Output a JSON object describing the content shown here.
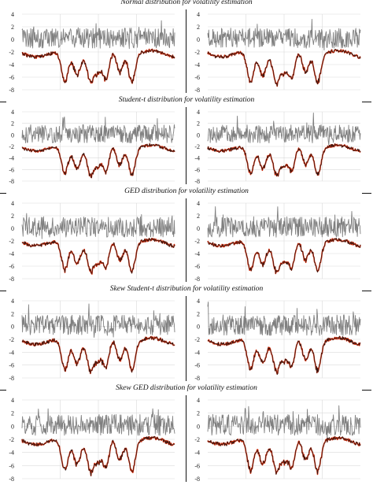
{
  "figure": {
    "rows": [
      {
        "title": "Normal distribution for volatility estimation",
        "panels": [
          {
            "seed": 11
          },
          {
            "seed": 12
          }
        ]
      },
      {
        "title": "Student-t distribution for volatility estimation",
        "panels": [
          {
            "seed": 21
          },
          {
            "seed": 22
          }
        ]
      },
      {
        "title": "GED distribution for volatility estimation",
        "panels": [
          {
            "seed": 31
          },
          {
            "seed": 32
          }
        ]
      },
      {
        "title": "Skew Student-t distribution for volatility estimation",
        "panels": [
          {
            "seed": 41
          },
          {
            "seed": 42
          }
        ]
      },
      {
        "title": "Skew GED distribution for volatility estimation",
        "panels": [
          {
            "seed": 51
          },
          {
            "seed": 52
          }
        ]
      }
    ]
  },
  "chart_data": {
    "type": "line",
    "ylim": [
      -8,
      4
    ],
    "yticks": [
      4,
      2,
      0,
      -2,
      -4,
      -6,
      -8
    ],
    "grid": true,
    "series": [
      {
        "color": "#808080",
        "level": 0.2,
        "note_values": "oscillates roughly between -2 and 4 around 0"
      },
      {
        "color": "#cc2200",
        "level": -2.2,
        "note_values": "band around -2 to -3 with spikes down to about -8"
      },
      {
        "color": "#1a1a1a",
        "level": -2.2
      }
    ]
  }
}
